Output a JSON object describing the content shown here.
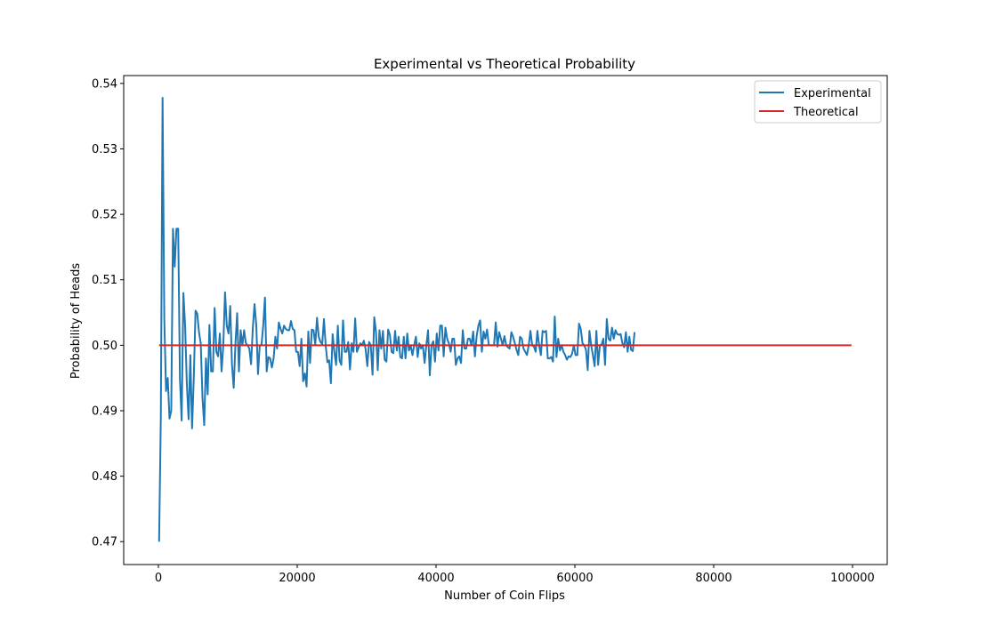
{
  "chart_data": {
    "type": "line",
    "title": "Experimental vs Theoretical Probability",
    "xlabel": "Number of Coin Flips",
    "ylabel": "Probability of Heads",
    "xlim": [
      -5000,
      105000
    ],
    "ylim": [
      0.4665,
      0.5412
    ],
    "xticks": [
      0,
      20000,
      40000,
      60000,
      80000,
      100000
    ],
    "yticks": [
      0.47,
      0.48,
      0.49,
      0.5,
      0.51,
      0.52,
      0.53,
      0.54
    ],
    "ytick_labels": [
      "0.47",
      "0.48",
      "0.49",
      "0.50",
      "0.51",
      "0.52",
      "0.53",
      "0.54"
    ],
    "grid": false,
    "legend_position": "top-right",
    "series": [
      {
        "name": "Experimental",
        "color": "#1f77b4",
        "x_start": 100,
        "x_step": 250,
        "values": [
          0.47,
          0.489,
          0.5378,
          0.504,
          0.493,
          0.495,
          0.4888,
          0.49,
          0.5178,
          0.512,
          0.5178,
          0.5178,
          0.495,
          0.4885,
          0.508,
          0.503,
          0.494,
          0.4887,
          0.4985,
          0.4873,
          0.495,
          0.5053,
          0.5048,
          0.502,
          0.5003,
          0.492,
          0.4878,
          0.498,
          0.4925,
          0.5031,
          0.496,
          0.496,
          0.5057,
          0.499,
          0.4983,
          0.5018,
          0.496,
          0.5,
          0.5081,
          0.503,
          0.5018,
          0.506,
          0.497,
          0.4935,
          0.5003,
          0.5049,
          0.496,
          0.5023,
          0.5,
          0.5023,
          0.5003,
          0.5,
          0.4995,
          0.4971,
          0.5026,
          0.5063,
          0.5031,
          0.4956,
          0.5,
          0.5,
          0.503,
          0.5073,
          0.496,
          0.4982,
          0.498,
          0.4966,
          0.498,
          0.5013,
          0.4995,
          0.5035,
          0.5025,
          0.5018,
          0.503,
          0.5025,
          0.5023,
          0.5023,
          0.5037,
          0.5025,
          0.5023,
          0.499,
          0.499,
          0.4968,
          0.501,
          0.4945,
          0.4957,
          0.4937,
          0.5021,
          0.4973,
          0.5024,
          0.5023,
          0.5001,
          0.5042,
          0.5013,
          0.5005,
          0.5002,
          0.504,
          0.5,
          0.4974,
          0.4977,
          0.4942,
          0.5017,
          0.499,
          0.497,
          0.503,
          0.4977,
          0.497,
          0.5038,
          0.499,
          0.499,
          0.5005,
          0.4963,
          0.5003,
          0.499,
          0.5041,
          0.499,
          0.4997,
          0.5003,
          0.5,
          0.5007,
          0.4994,
          0.4968,
          0.5005,
          0.5,
          0.4955,
          0.5043,
          0.502,
          0.4962,
          0.5023,
          0.4995,
          0.5022,
          0.4978,
          0.4975,
          0.5024,
          0.5016,
          0.499,
          0.4988,
          0.5022,
          0.4992,
          0.5013,
          0.4982,
          0.498,
          0.5013,
          0.498,
          0.5018,
          0.4992,
          0.5,
          0.4985,
          0.5,
          0.5013,
          0.4982,
          0.5003,
          0.4995,
          0.5,
          0.4973,
          0.5,
          0.5023,
          0.4954,
          0.5,
          0.5006,
          0.4975,
          0.5018,
          0.4992,
          0.503,
          0.503,
          0.4983,
          0.5027,
          0.501,
          0.5003,
          0.499,
          0.501,
          0.501,
          0.497,
          0.498,
          0.4983,
          0.4973,
          0.5023,
          0.4995,
          0.4995,
          0.501,
          0.501,
          0.5,
          0.5021,
          0.4983,
          0.5014,
          0.503,
          0.5038,
          0.499,
          0.5021,
          0.501,
          0.5024,
          0.5,
          0.5,
          0.5,
          0.5,
          0.5035,
          0.4998,
          0.502,
          0.501,
          0.5,
          0.5014,
          0.5,
          0.4997,
          0.4995,
          0.502,
          0.5013,
          0.5003,
          0.4993,
          0.4985,
          0.5013,
          0.501,
          0.4995,
          0.499,
          0.4985,
          0.5,
          0.5022,
          0.5,
          0.4998,
          0.499,
          0.5022,
          0.5,
          0.4985,
          0.5022,
          0.502,
          0.5022,
          0.498,
          0.498,
          0.4982,
          0.4975,
          0.5044,
          0.4982,
          0.501,
          0.4992,
          0.5,
          0.499,
          0.4985,
          0.4978,
          0.4983,
          0.4982,
          0.4987,
          0.5,
          0.4985,
          0.4985,
          0.5033,
          0.5025,
          0.5003,
          0.5,
          0.4993,
          0.4962,
          0.5022,
          0.5,
          0.4985,
          0.4968,
          0.5022,
          0.497,
          0.5,
          0.5001,
          0.501,
          0.497,
          0.504,
          0.501,
          0.5007,
          0.5027,
          0.501,
          0.5023,
          0.5017,
          0.5016,
          0.5017,
          0.5003,
          0.4997,
          0.502,
          0.499,
          0.5013,
          0.4993,
          0.4991,
          0.502
        ]
      },
      {
        "name": "Theoretical",
        "color": "#d62728",
        "x": [
          100,
          99850
        ],
        "values": [
          0.5,
          0.5
        ]
      }
    ]
  }
}
